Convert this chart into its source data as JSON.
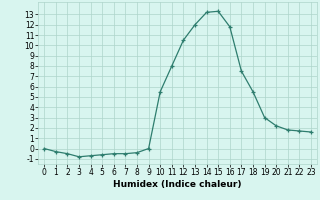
{
  "x": [
    0,
    1,
    2,
    3,
    4,
    5,
    6,
    7,
    8,
    9,
    10,
    11,
    12,
    13,
    14,
    15,
    16,
    17,
    18,
    19,
    20,
    21,
    22,
    23
  ],
  "y": [
    0,
    -0.3,
    -0.5,
    -0.8,
    -0.7,
    -0.6,
    -0.5,
    -0.5,
    -0.4,
    0.0,
    5.5,
    8.0,
    10.5,
    12.0,
    13.2,
    13.3,
    11.8,
    7.5,
    5.5,
    3.0,
    2.2,
    1.8,
    1.7,
    1.6
  ],
  "xlabel": "Humidex (Indice chaleur)",
  "xlim": [
    -0.5,
    23.5
  ],
  "ylim": [
    -1.5,
    14.2
  ],
  "yticks": [
    -1,
    0,
    1,
    2,
    3,
    4,
    5,
    6,
    7,
    8,
    9,
    10,
    11,
    12,
    13
  ],
  "xticks": [
    0,
    1,
    2,
    3,
    4,
    5,
    6,
    7,
    8,
    9,
    10,
    11,
    12,
    13,
    14,
    15,
    16,
    17,
    18,
    19,
    20,
    21,
    22,
    23
  ],
  "line_color": "#2e7d6e",
  "marker": "+",
  "bg_color": "#d8f5ef",
  "grid_color": "#aed4cb",
  "tick_fontsize": 5.5,
  "xlabel_fontsize": 6.5,
  "marker_size": 3,
  "linewidth": 0.9
}
